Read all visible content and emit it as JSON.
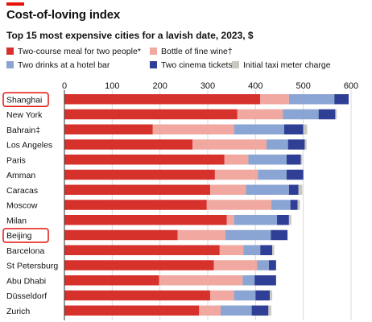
{
  "chart_data": {
    "type": "bar",
    "orientation": "horizontal",
    "stacked": true,
    "title": "Cost-of-loving index",
    "subtitle": "Top 15 most expensive cities for a lavish date, 2023, $",
    "xlim": [
      0,
      600
    ],
    "xticks": [
      0,
      100,
      200,
      300,
      400,
      500,
      600
    ],
    "grid": true,
    "legend_position": "top",
    "categories": [
      "Shanghai",
      "New York",
      "Bahrain‡",
      "Los Angeles",
      "Paris",
      "Amman",
      "Caracas",
      "Moscow",
      "Milan",
      "Beijing",
      "Barcelona",
      "St Petersburg",
      "Abu Dhabi",
      "Düsseldorf",
      "Zurich"
    ],
    "highlighted_categories": [
      "Shanghai",
      "Beijing"
    ],
    "series": [
      {
        "name": "Two-course meal for two people*",
        "color": "#d7312b",
        "values": [
          410,
          362,
          185,
          268,
          335,
          315,
          305,
          298,
          340,
          237,
          325,
          313,
          198,
          305,
          282
        ]
      },
      {
        "name": "Bottle of fine wine†",
        "color": "#f0a8a0",
        "values": [
          60,
          95,
          170,
          155,
          50,
          90,
          75,
          135,
          15,
          100,
          50,
          90,
          175,
          50,
          45
        ]
      },
      {
        "name": "Two drinks at a hotel bar",
        "color": "#8aa5d4",
        "values": [
          95,
          75,
          105,
          45,
          80,
          60,
          90,
          40,
          90,
          95,
          35,
          25,
          25,
          45,
          65
        ]
      },
      {
        "name": "Two cinema tickets",
        "color": "#2f3f95",
        "values": [
          30,
          35,
          40,
          35,
          30,
          35,
          20,
          15,
          25,
          35,
          25,
          15,
          45,
          30,
          35
        ]
      },
      {
        "name": "Initial taxi meter charge",
        "color": "#c8c8c2",
        "values": [
          0,
          3,
          8,
          4,
          3,
          0,
          8,
          5,
          5,
          0,
          4,
          0,
          0,
          5,
          6
        ]
      }
    ]
  }
}
